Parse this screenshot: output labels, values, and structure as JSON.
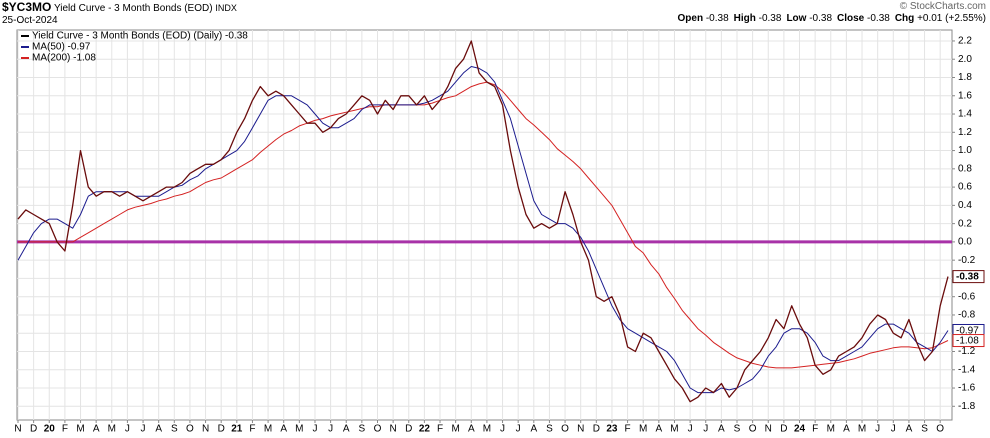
{
  "header": {
    "symbol": "$YC3MO",
    "name": "Yield Curve - 3 Month Bonds (EOD)",
    "exchange": "INDX",
    "date": "25-Oct-2024",
    "copyright": "© StockCharts.com",
    "quote": [
      {
        "label": "Open",
        "value": "-0.38"
      },
      {
        "label": "High",
        "value": "-0.38"
      },
      {
        "label": "Low",
        "value": "-0.38"
      },
      {
        "label": "Close",
        "value": "-0.38"
      },
      {
        "label": "Chg",
        "value": "+0.01 (+2.55%)"
      }
    ]
  },
  "chart_data": {
    "type": "line",
    "categories": [
      "N",
      null,
      "D",
      null,
      "20",
      null,
      "F",
      null,
      "M",
      null,
      "A",
      null,
      "M",
      null,
      "J",
      null,
      "J",
      null,
      "A",
      null,
      "S",
      null,
      "O",
      null,
      "N",
      null,
      "D",
      null,
      "21",
      null,
      "F",
      null,
      "M",
      null,
      "A",
      null,
      "M",
      null,
      "J",
      null,
      "J",
      null,
      "A",
      null,
      "S",
      null,
      "O",
      null,
      "N",
      null,
      "D",
      null,
      "22",
      null,
      "F",
      null,
      "M",
      null,
      "A",
      null,
      "M",
      null,
      "J",
      null,
      "J",
      null,
      "A",
      null,
      "S",
      null,
      "O",
      null,
      "N",
      null,
      "D",
      null,
      "23",
      null,
      "F",
      null,
      "M",
      null,
      "A",
      null,
      "M",
      null,
      "J",
      null,
      "J",
      null,
      "A",
      null,
      "S",
      null,
      "O",
      null,
      "N",
      null,
      "D",
      null,
      "24",
      null,
      "F",
      null,
      "M",
      null,
      "A",
      null,
      "M",
      null,
      "J",
      null,
      "J",
      null,
      "A",
      null,
      "S",
      null,
      "O",
      null
    ],
    "series": [
      {
        "name": "Yield Curve - 3 Month Bonds (EOD) (Daily) -0.38",
        "color": "#6a0c0c",
        "last_value": -0.38,
        "values": [
          0.25,
          0.35,
          0.3,
          0.25,
          0.2,
          0.0,
          -0.1,
          0.4,
          1.0,
          0.6,
          0.5,
          0.55,
          0.55,
          0.5,
          0.55,
          0.5,
          0.45,
          0.5,
          0.55,
          0.6,
          0.6,
          0.65,
          0.75,
          0.8,
          0.85,
          0.85,
          0.9,
          1.0,
          1.2,
          1.35,
          1.55,
          1.7,
          1.6,
          1.65,
          1.6,
          1.5,
          1.4,
          1.3,
          1.3,
          1.2,
          1.25,
          1.35,
          1.4,
          1.5,
          1.6,
          1.55,
          1.4,
          1.55,
          1.45,
          1.6,
          1.6,
          1.5,
          1.6,
          1.45,
          1.55,
          1.7,
          1.9,
          2.0,
          2.2,
          1.85,
          1.75,
          1.7,
          1.5,
          1.0,
          0.6,
          0.3,
          0.15,
          0.2,
          0.15,
          0.2,
          0.55,
          0.3,
          0.0,
          -0.2,
          -0.6,
          -0.65,
          -0.6,
          -0.8,
          -1.15,
          -1.2,
          -1.0,
          -1.05,
          -1.2,
          -1.35,
          -1.5,
          -1.6,
          -1.75,
          -1.7,
          -1.6,
          -1.65,
          -1.55,
          -1.7,
          -1.6,
          -1.4,
          -1.3,
          -1.2,
          -1.05,
          -0.85,
          -0.95,
          -0.7,
          -0.9,
          -1.05,
          -1.35,
          -1.45,
          -1.4,
          -1.25,
          -1.2,
          -1.15,
          -1.05,
          -0.9,
          -0.8,
          -0.85,
          -1.0,
          -1.05,
          -0.85,
          -1.1,
          -1.3,
          -1.2,
          -0.7,
          -0.38
        ]
      },
      {
        "name": "MA(50) -0.97",
        "color": "#1c1c8e",
        "last_value": -0.97,
        "values": [
          -0.2,
          -0.05,
          0.1,
          0.2,
          0.25,
          0.25,
          0.2,
          0.15,
          0.3,
          0.5,
          0.55,
          0.55,
          0.55,
          0.55,
          0.55,
          0.5,
          0.5,
          0.5,
          0.5,
          0.55,
          0.6,
          0.62,
          0.68,
          0.72,
          0.8,
          0.85,
          0.9,
          0.95,
          1.0,
          1.1,
          1.25,
          1.4,
          1.55,
          1.6,
          1.6,
          1.6,
          1.55,
          1.5,
          1.4,
          1.3,
          1.25,
          1.25,
          1.3,
          1.35,
          1.45,
          1.5,
          1.5,
          1.5,
          1.5,
          1.5,
          1.5,
          1.5,
          1.52,
          1.55,
          1.6,
          1.65,
          1.75,
          1.85,
          1.92,
          1.9,
          1.85,
          1.75,
          1.55,
          1.35,
          1.05,
          0.75,
          0.45,
          0.3,
          0.25,
          0.2,
          0.2,
          0.15,
          0.05,
          -0.1,
          -0.3,
          -0.5,
          -0.7,
          -0.85,
          -0.95,
          -1.0,
          -1.05,
          -1.1,
          -1.15,
          -1.2,
          -1.3,
          -1.45,
          -1.6,
          -1.65,
          -1.65,
          -1.65,
          -1.6,
          -1.62,
          -1.6,
          -1.55,
          -1.5,
          -1.4,
          -1.25,
          -1.15,
          -1.0,
          -0.95,
          -0.95,
          -1.0,
          -1.1,
          -1.25,
          -1.3,
          -1.3,
          -1.25,
          -1.2,
          -1.15,
          -1.05,
          -0.95,
          -0.9,
          -0.9,
          -0.95,
          -1.0,
          -1.1,
          -1.15,
          -1.2,
          -1.1,
          -0.97
        ]
      },
      {
        "name": "MA(200) -1.08",
        "color": "#d42222",
        "last_value": -1.08,
        "values": [
          0.0,
          0.0,
          0.0,
          0.0,
          0.0,
          0.0,
          0.0,
          0.0,
          0.05,
          0.1,
          0.15,
          0.2,
          0.25,
          0.3,
          0.35,
          0.38,
          0.4,
          0.42,
          0.45,
          0.47,
          0.5,
          0.52,
          0.55,
          0.6,
          0.65,
          0.68,
          0.7,
          0.75,
          0.8,
          0.85,
          0.9,
          0.98,
          1.05,
          1.12,
          1.18,
          1.22,
          1.27,
          1.3,
          1.33,
          1.35,
          1.38,
          1.4,
          1.42,
          1.44,
          1.46,
          1.48,
          1.48,
          1.5,
          1.5,
          1.5,
          1.5,
          1.5,
          1.5,
          1.52,
          1.55,
          1.58,
          1.6,
          1.65,
          1.7,
          1.73,
          1.75,
          1.72,
          1.65,
          1.55,
          1.45,
          1.35,
          1.28,
          1.2,
          1.12,
          1.02,
          0.95,
          0.88,
          0.8,
          0.7,
          0.6,
          0.5,
          0.4,
          0.25,
          0.1,
          -0.05,
          -0.12,
          -0.25,
          -0.35,
          -0.5,
          -0.62,
          -0.75,
          -0.85,
          -0.95,
          -1.02,
          -1.1,
          -1.16,
          -1.22,
          -1.27,
          -1.3,
          -1.33,
          -1.35,
          -1.37,
          -1.38,
          -1.38,
          -1.38,
          -1.37,
          -1.36,
          -1.35,
          -1.34,
          -1.33,
          -1.32,
          -1.3,
          -1.28,
          -1.25,
          -1.22,
          -1.2,
          -1.18,
          -1.16,
          -1.15,
          -1.15,
          -1.16,
          -1.17,
          -1.16,
          -1.12,
          -1.08
        ]
      }
    ],
    "ylim": [
      -1.95,
      2.32
    ],
    "yticks": [
      2.2,
      {
        "value": 2.0,
        "label": "2.0"
      },
      1.8,
      1.6,
      1.4,
      1.2,
      {
        "value": 1.0,
        "label": "1.0"
      },
      0.8,
      0.6,
      0.4,
      0.2,
      {
        "value": 0.0,
        "label": "0.0"
      },
      -0.2,
      -0.4,
      -0.6,
      -0.8,
      {
        "value": -1.0,
        "label": "-1.0"
      },
      -1.2,
      -1.4,
      -1.6,
      -1.8
    ],
    "grid": true,
    "reference_line": {
      "value": 0,
      "color": "#a832a8"
    },
    "legend": "top-left"
  }
}
